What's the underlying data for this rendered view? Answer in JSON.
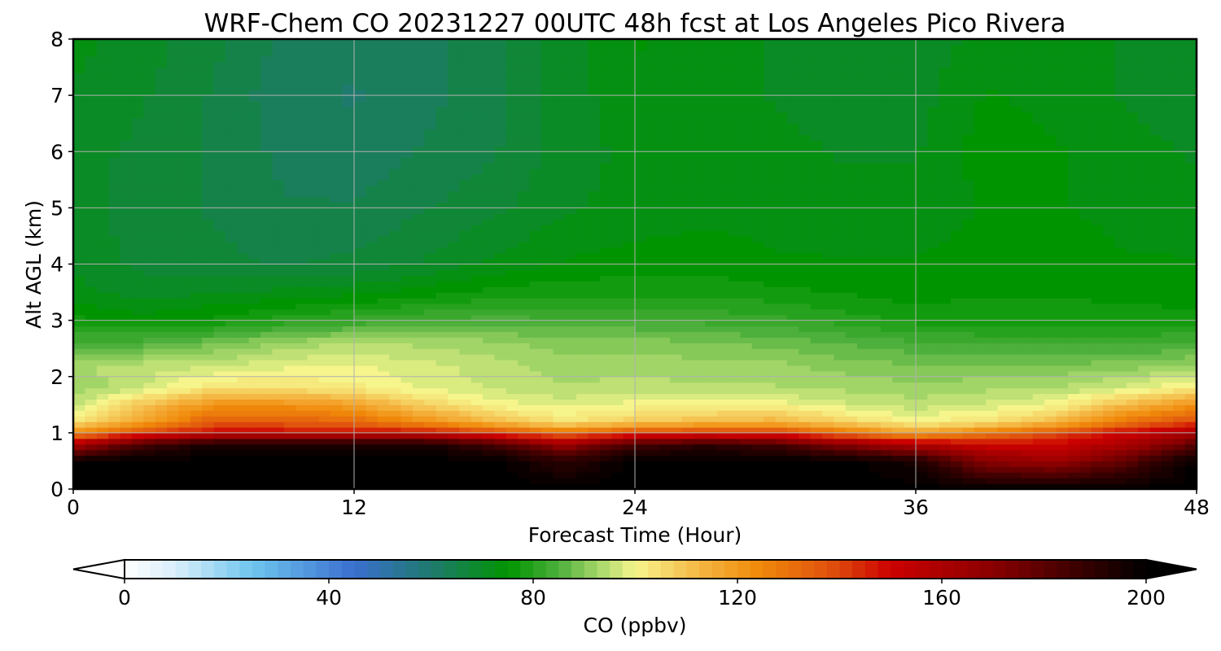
{
  "chart_data": {
    "type": "heatmap",
    "title": "WRF-Chem CO  20231227 00UTC 48h fcst at Los Angeles Pico Rivera",
    "xlabel": "Forecast Time (Hour)",
    "ylabel": "Alt AGL (km)",
    "xlim": [
      0,
      48
    ],
    "ylim": [
      0,
      8
    ],
    "xticks": [
      0,
      12,
      24,
      36,
      48
    ],
    "yticks": [
      0,
      1,
      2,
      3,
      4,
      5,
      6,
      7,
      8
    ],
    "grid": true,
    "x": [
      0,
      3,
      6,
      9,
      12,
      15,
      18,
      21,
      24,
      27,
      30,
      33,
      36,
      39,
      42,
      45,
      48
    ],
    "y": [
      0,
      0.5,
      0.8,
      1.0,
      1.2,
      1.5,
      1.8,
      2.2,
      2.6,
      3.0,
      3.5,
      4.0,
      5.0,
      6.0,
      7.0,
      8.0
    ],
    "z": [
      [
        200,
        200,
        200,
        200,
        200,
        200,
        200,
        200,
        200,
        200,
        200,
        200,
        200,
        200,
        200,
        200,
        200
      ],
      [
        200,
        200,
        200,
        200,
        200,
        200,
        200,
        190,
        200,
        200,
        200,
        200,
        195,
        170,
        165,
        180,
        200
      ],
      [
        160,
        185,
        195,
        195,
        195,
        195,
        185,
        165,
        185,
        190,
        185,
        170,
        158,
        150,
        150,
        160,
        180
      ],
      [
        125,
        140,
        150,
        150,
        150,
        150,
        140,
        130,
        140,
        142,
        142,
        130,
        118,
        128,
        138,
        150,
        162
      ],
      [
        104,
        118,
        135,
        135,
        132,
        122,
        112,
        103,
        108,
        112,
        114,
        106,
        100,
        104,
        112,
        130,
        140
      ],
      [
        95,
        110,
        122,
        122,
        118,
        108,
        100,
        98,
        100,
        100,
        100,
        97,
        95,
        97,
        100,
        112,
        122
      ],
      [
        92,
        96,
        104,
        104,
        102,
        98,
        96,
        94,
        95,
        94,
        94,
        93,
        92,
        93,
        94,
        97,
        103
      ],
      [
        93,
        95,
        96,
        98,
        99,
        97,
        95,
        92,
        93,
        92,
        92,
        90,
        89,
        89,
        89,
        90,
        92
      ],
      [
        84,
        85,
        88,
        92,
        94,
        93,
        92,
        90,
        90,
        89,
        88,
        86,
        84,
        83,
        83,
        83,
        84
      ],
      [
        77,
        75,
        77,
        80,
        82,
        84,
        85,
        84,
        84,
        83,
        82,
        80,
        78,
        78,
        78,
        78,
        77
      ],
      [
        72,
        70,
        71,
        72,
        73,
        75,
        77,
        78,
        78,
        78,
        77,
        76,
        75,
        76,
        76,
        75,
        75
      ],
      [
        71,
        68,
        67,
        66,
        67,
        69,
        72,
        74,
        75,
        75,
        74,
        74,
        74,
        75,
        75,
        74,
        74
      ],
      [
        70,
        67,
        66,
        64,
        64,
        66,
        68,
        71,
        72,
        73,
        73,
        72,
        72,
        74,
        74,
        73,
        72
      ],
      [
        70,
        68,
        66,
        63,
        62,
        64,
        66,
        70,
        72,
        73,
        72,
        71,
        71,
        75,
        74,
        72,
        71
      ],
      [
        71,
        69,
        66,
        62,
        61,
        63,
        65,
        70,
        73,
        73,
        71,
        70,
        70,
        74,
        73,
        71,
        70
      ],
      [
        72,
        70,
        67,
        63,
        62,
        63,
        65,
        70,
        74,
        73,
        71,
        70,
        70,
        72,
        72,
        71,
        71
      ]
    ],
    "colorbar": {
      "label": "CO  (ppbv)",
      "min": 0,
      "max": 200,
      "ticks": [
        0,
        40,
        80,
        120,
        160,
        200
      ],
      "extend": "both",
      "stops": [
        {
          "v": 0,
          "c": "#ffffff"
        },
        {
          "v": 10,
          "c": "#d8eefa"
        },
        {
          "v": 25,
          "c": "#6ec5ee"
        },
        {
          "v": 45,
          "c": "#3a6fcf"
        },
        {
          "v": 60,
          "c": "#1f7a6e"
        },
        {
          "v": 75,
          "c": "#009400"
        },
        {
          "v": 85,
          "c": "#4daf3c"
        },
        {
          "v": 93,
          "c": "#a8d86a"
        },
        {
          "v": 100,
          "c": "#f6f58c"
        },
        {
          "v": 112,
          "c": "#f5b946"
        },
        {
          "v": 124,
          "c": "#f08a0a"
        },
        {
          "v": 138,
          "c": "#e0520e"
        },
        {
          "v": 150,
          "c": "#cc0000"
        },
        {
          "v": 170,
          "c": "#8a0000"
        },
        {
          "v": 185,
          "c": "#420000"
        },
        {
          "v": 200,
          "c": "#000000"
        }
      ]
    }
  }
}
